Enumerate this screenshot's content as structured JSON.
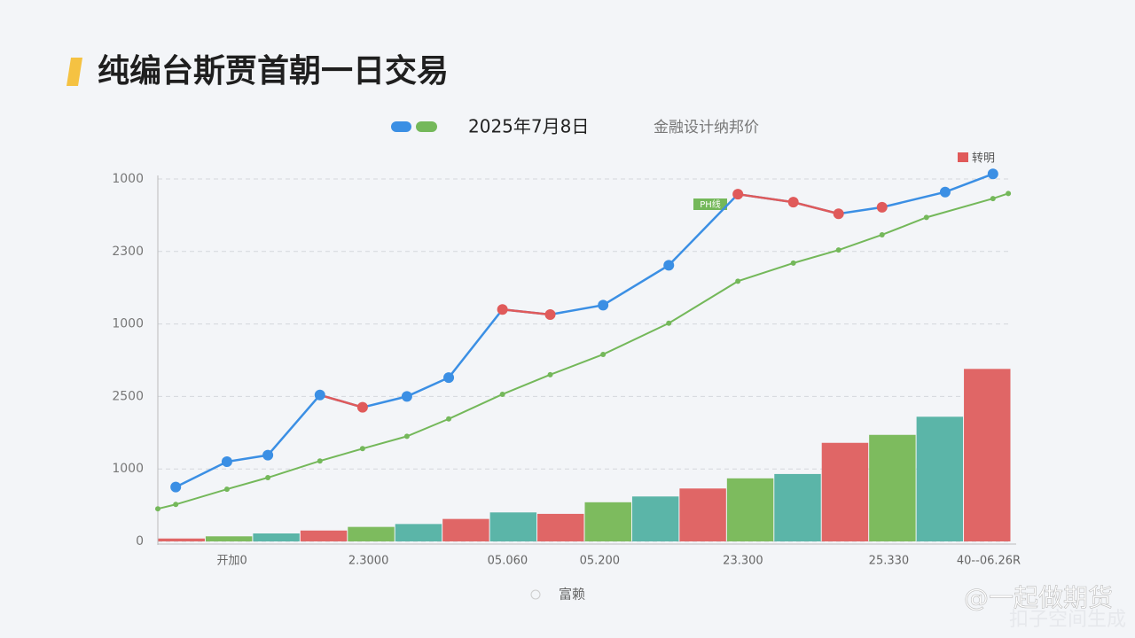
{
  "chart_data": {
    "type": "combo",
    "title": "纯编台斯贾首朝一日交易",
    "xlim": [
      0,
      100
    ],
    "ylim": [
      0,
      5
    ],
    "yticks": [
      0,
      {
        "value": 1,
        "label": "1000"
      },
      {
        "value": 2,
        "label": "2500"
      },
      {
        "value": 3,
        "label": "1000"
      },
      {
        "value": 4,
        "label": "2300"
      },
      {
        "value": 5,
        "label": "1000"
      }
    ],
    "xticks": [
      {
        "value": 8.7,
        "label": "开加0"
      },
      {
        "value": 24.7,
        "label": "2.3000"
      },
      {
        "value": 41.0,
        "label": "05.060"
      },
      {
        "value": 51.8,
        "label": "05.200"
      },
      {
        "value": 68.6,
        "label": "23.300"
      },
      {
        "value": 85.7,
        "label": "25.330"
      },
      {
        "value": 97.4,
        "label": "40--06.26R"
      }
    ],
    "grid": true,
    "bars": {
      "values": [
        0.04,
        0.07,
        0.11,
        0.15,
        0.2,
        0.24,
        0.31,
        0.4,
        0.38,
        0.54,
        0.62,
        0.73,
        0.87,
        0.93,
        1.36,
        1.47,
        1.72,
        2.38
      ],
      "colors": [
        "#e06666",
        "#7dbb5e",
        "#5bb5a8",
        "#e06666",
        "#7dbb5e",
        "#5bb5a8",
        "#e06666",
        "#5bb5a8",
        "#e06666",
        "#7dbb5e",
        "#5bb5a8",
        "#e06666",
        "#7dbb5e",
        "#5bb5a8",
        "#e06666",
        "#7dbb5e",
        "#5bb5a8",
        "#e06666"
      ]
    },
    "series": [
      {
        "name": "2025年7月8日",
        "color": "#3b8fe4",
        "down_color": "#e05a5a",
        "x": [
          2.1,
          8.1,
          12.9,
          19.0,
          24.0,
          29.2,
          34.1,
          40.4,
          46.0,
          52.2,
          59.9,
          68.0,
          74.5,
          79.8,
          84.9,
          92.3,
          97.9
        ],
        "values": [
          0.75,
          1.1,
          1.19,
          2.02,
          1.85,
          2.0,
          2.26,
          3.2,
          3.13,
          3.26,
          3.81,
          4.79,
          4.68,
          4.52,
          4.61,
          4.82,
          5.07
        ],
        "marker_colors": [
          "#3b8fe4",
          "#3b8fe4",
          "#3b8fe4",
          "#3b8fe4",
          "#e05a5a",
          "#3b8fe4",
          "#3b8fe4",
          "#e05a5a",
          "#e05a5a",
          "#3b8fe4",
          "#3b8fe4",
          "#e05a5a",
          "#e05a5a",
          "#e05a5a",
          "#e05a5a",
          "#3b8fe4",
          "#3b8fe4"
        ]
      },
      {
        "name": "金融设计纳邦价",
        "color": "#74b85a",
        "x": [
          0,
          2.1,
          8.1,
          12.9,
          19.0,
          24.0,
          29.2,
          34.1,
          40.4,
          46.0,
          52.2,
          59.9,
          68.0,
          74.5,
          79.8,
          84.9,
          90.1,
          97.9,
          99.7
        ],
        "values": [
          0.45,
          0.51,
          0.72,
          0.88,
          1.11,
          1.28,
          1.45,
          1.69,
          2.03,
          2.3,
          2.58,
          3.01,
          3.59,
          3.84,
          4.02,
          4.23,
          4.47,
          4.73,
          4.8
        ]
      }
    ],
    "annotations": [
      "转明",
      "PH线"
    ],
    "footer": "富赖",
    "watermark": "@一起做期货",
    "watermark_sub": "扣子空间生成"
  }
}
